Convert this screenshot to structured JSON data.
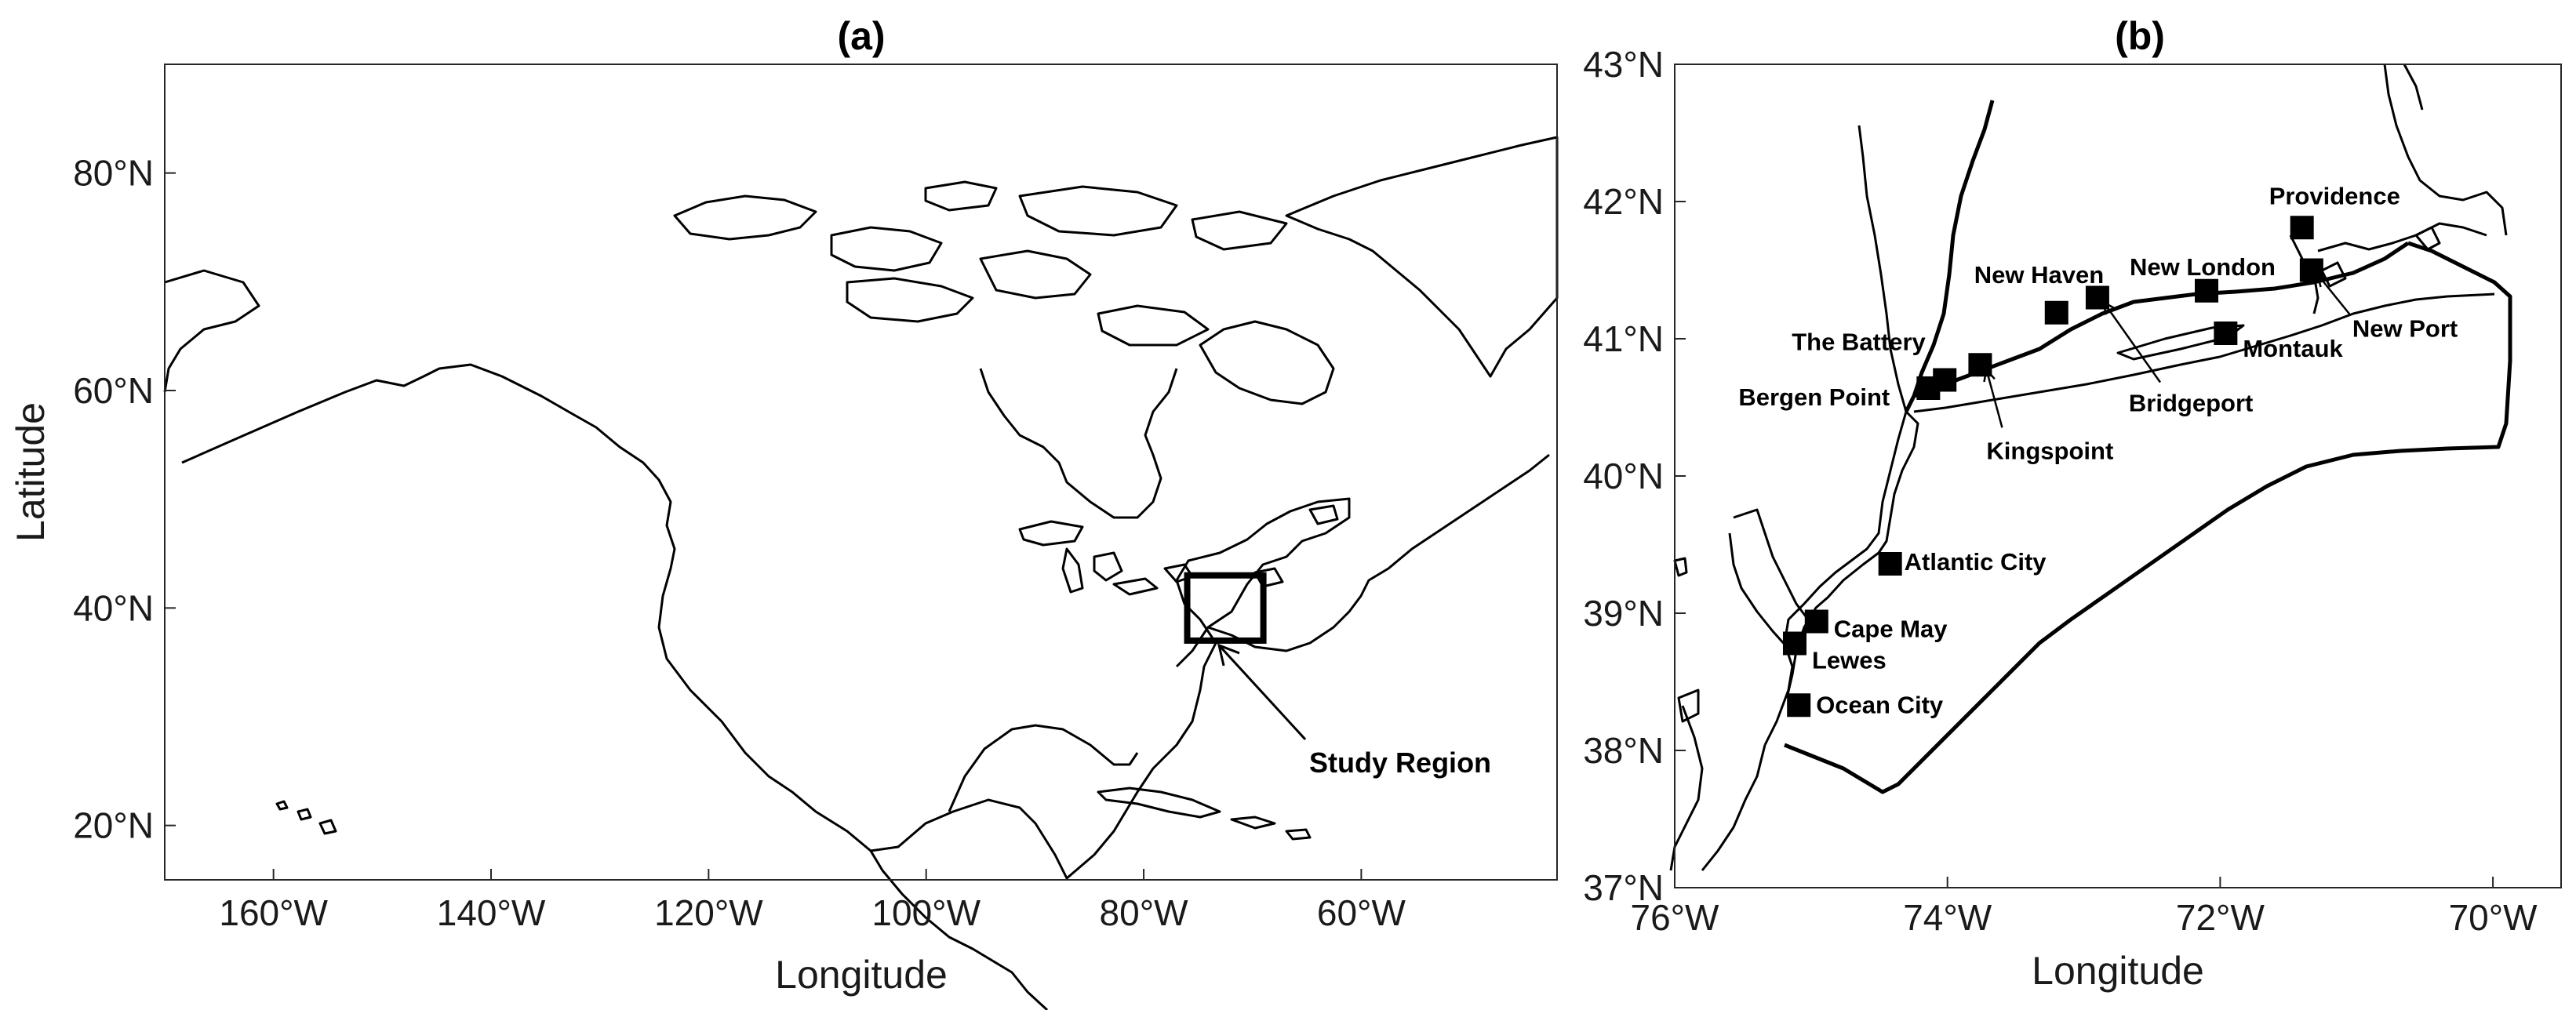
{
  "panel_a": {
    "title": "(a)",
    "xlabel": "Longitude",
    "ylabel": "Latitude",
    "xlim": [
      -170,
      -42
    ],
    "ylim": [
      15,
      90
    ],
    "x_ticks": [
      {
        "lon": -160,
        "label": "160°W"
      },
      {
        "lon": -140,
        "label": "140°W"
      },
      {
        "lon": -120,
        "label": "120°W"
      },
      {
        "lon": -100,
        "label": "100°W"
      },
      {
        "lon": -80,
        "label": "80°W"
      },
      {
        "lon": -60,
        "label": "60°W"
      }
    ],
    "y_ticks": [
      {
        "lat": 80,
        "label": "80°N"
      },
      {
        "lat": 60,
        "label": "60°N"
      },
      {
        "lat": 40,
        "label": "40°N"
      },
      {
        "lat": 20,
        "label": "20°N"
      }
    ],
    "study_region": {
      "label": "Study Region",
      "lon_range": [
        -76,
        -69
      ],
      "lat_range": [
        37,
        43
      ]
    }
  },
  "panel_b": {
    "title": "(b)",
    "xlabel": "Longitude",
    "xlim": [
      -76,
      -69.5
    ],
    "ylim": [
      37,
      43
    ],
    "x_ticks": [
      {
        "lon": -76,
        "label": "76°W"
      },
      {
        "lon": -74,
        "label": "74°W"
      },
      {
        "lon": -72,
        "label": "72°W"
      },
      {
        "lon": -70,
        "label": "70°W"
      }
    ],
    "y_ticks": [
      {
        "lat": 43,
        "label": "43°N"
      },
      {
        "lat": 42,
        "label": "42°N"
      },
      {
        "lat": 41,
        "label": "41°N"
      },
      {
        "lat": 40,
        "label": "40°N"
      },
      {
        "lat": 39,
        "label": "39°N"
      },
      {
        "lat": 38,
        "label": "38°N"
      },
      {
        "lat": 37,
        "label": "37°N"
      }
    ],
    "stations": [
      {
        "name": "Providence",
        "lon": -71.4,
        "lat": 41.81
      },
      {
        "name": "New Haven",
        "lon": -73.2,
        "lat": 41.19
      },
      {
        "name": "New London",
        "lon": -72.1,
        "lat": 41.35
      },
      {
        "name": "New Port",
        "lon": -71.33,
        "lat": 41.5
      },
      {
        "name": "Montauk",
        "lon": -71.96,
        "lat": 41.04
      },
      {
        "name": "The Battery",
        "lon": -74.02,
        "lat": 40.7
      },
      {
        "name": "Bergen Point",
        "lon": -74.14,
        "lat": 40.64
      },
      {
        "name": "Bridgeport",
        "lon": -72.9,
        "lat": 41.3
      },
      {
        "name": "Kingspoint",
        "lon": -73.76,
        "lat": 40.81
      },
      {
        "name": "Atlantic City",
        "lon": -74.42,
        "lat": 39.36
      },
      {
        "name": "Cape May",
        "lon": -74.96,
        "lat": 38.94
      },
      {
        "name": "Lewes",
        "lon": -75.12,
        "lat": 38.78
      },
      {
        "name": "Ocean City",
        "lon": -75.09,
        "lat": 38.33
      }
    ]
  }
}
